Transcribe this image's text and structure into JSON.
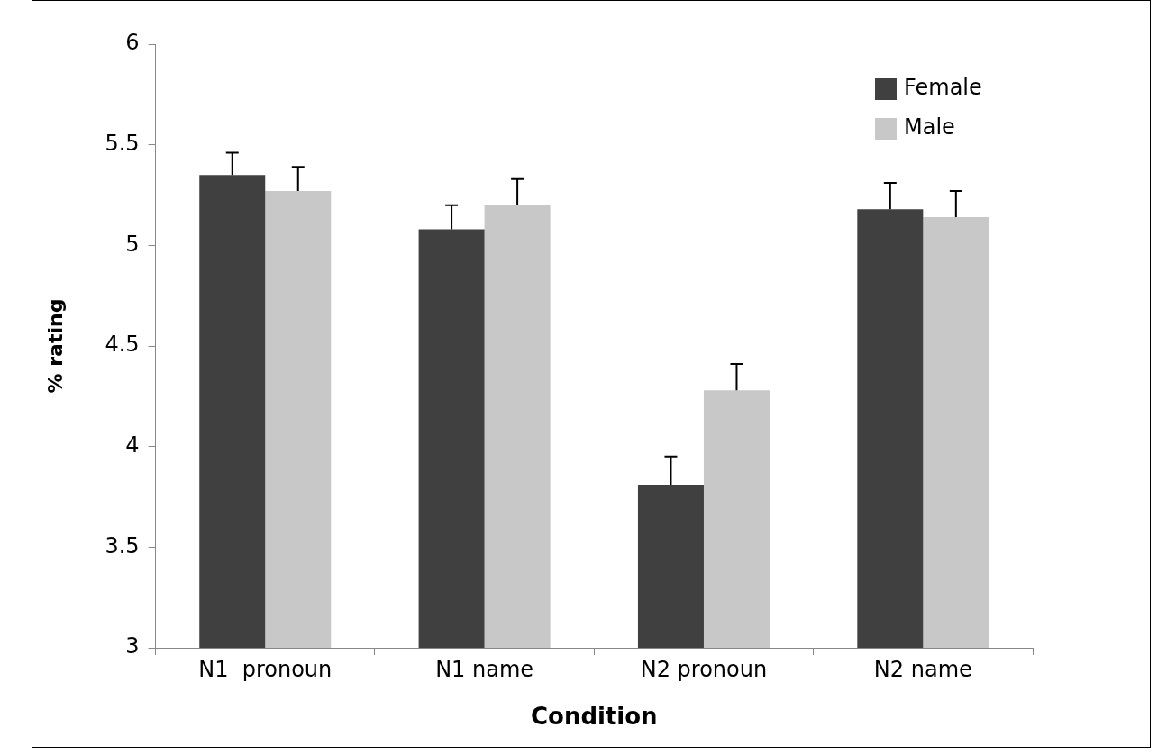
{
  "chart_data": {
    "type": "bar",
    "xlabel": "Condition",
    "ylabel": "% rating",
    "categories": [
      "N1  pronoun",
      "N1 name",
      "N2 pronoun",
      "N2 name"
    ],
    "series": [
      {
        "name": "Female",
        "color": "#404040",
        "values": [
          5.35,
          5.08,
          3.81,
          5.18
        ],
        "errors": [
          [
            5.35,
            5.46
          ],
          [
            5.08,
            5.2
          ],
          [
            3.81,
            3.95
          ],
          [
            5.18,
            5.31
          ]
        ]
      },
      {
        "name": "Male",
        "color": "#c8c8c8",
        "values": [
          5.27,
          5.2,
          4.28,
          5.14
        ],
        "errors": [
          [
            5.27,
            5.39
          ],
          [
            5.2,
            5.33
          ],
          [
            4.28,
            4.41
          ],
          [
            5.14,
            5.27
          ]
        ]
      }
    ],
    "ylim": [
      3,
      6
    ],
    "yticks": [
      3,
      3.5,
      4,
      4.5,
      5,
      5.5,
      6
    ],
    "grid": false,
    "legend": "top right"
  }
}
